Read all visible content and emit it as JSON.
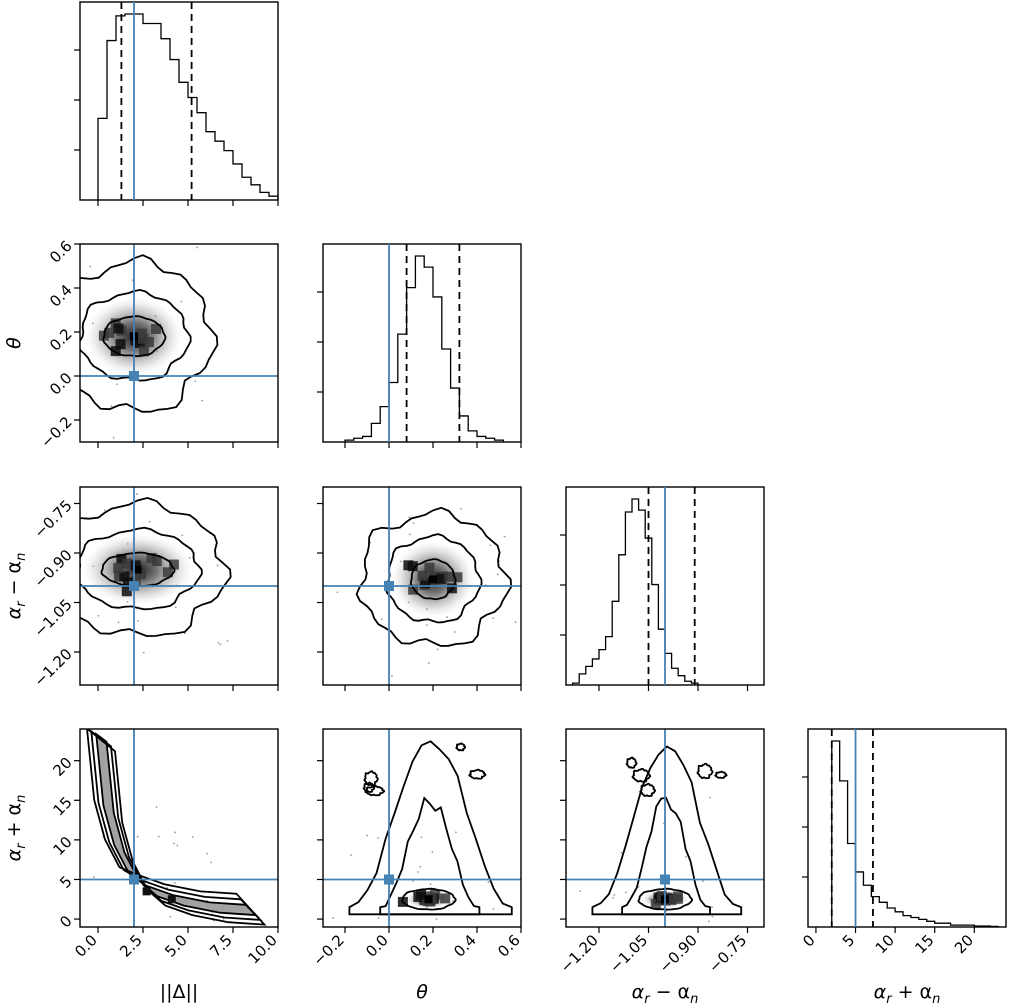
{
  "chart_data": {
    "type": "corner",
    "colors": {
      "truth": "#4682b4",
      "contour": "#000000",
      "hist": "#000000"
    },
    "quantile_line_style": "dashed",
    "parameters": [
      {
        "key": "delta",
        "label": "||Δ||",
        "range": [
          -1.0,
          10.0
        ],
        "truth": 2.0,
        "quantiles": [
          1.3,
          2.0,
          5.2
        ],
        "ticks": [
          0.0,
          2.5,
          5.0,
          7.5,
          10.0
        ],
        "tick_labels": [
          "0.0",
          "2.5",
          "5.0",
          "7.5",
          "10.0"
        ],
        "hist": {
          "start": 0.0,
          "step": 0.5,
          "counts": [
            0.43,
            0.84,
            0.97,
            0.98,
            0.98,
            0.93,
            0.93,
            0.85,
            0.74,
            0.62,
            0.54,
            0.46,
            0.36,
            0.31,
            0.26,
            0.19,
            0.12,
            0.08,
            0.04,
            0.02
          ]
        }
      },
      {
        "key": "theta",
        "label": "θ",
        "range": [
          -0.3,
          0.6
        ],
        "truth": 0.0,
        "quantiles": [
          0.08,
          0.2,
          0.32
        ],
        "ticks": [
          -0.2,
          0.0,
          0.2,
          0.4,
          0.6
        ],
        "tick_labels": [
          "−0.2",
          "0.0",
          "0.2",
          "0.4",
          "0.6"
        ],
        "hist": {
          "start": -0.2,
          "step": 0.04,
          "counts": [
            0.01,
            0.02,
            0.03,
            0.1,
            0.19,
            0.32,
            0.58,
            0.83,
            1.0,
            0.94,
            0.78,
            0.5,
            0.29,
            0.14,
            0.06,
            0.03,
            0.02,
            0.01
          ]
        }
      },
      {
        "key": "adiff",
        "label": "αr − αn",
        "label_main": "α",
        "label_sub1": "r",
        "label_op": " − α",
        "label_sub2": "n",
        "range": [
          -1.3,
          -0.7
        ],
        "truth": -1.0,
        "quantiles": [
          -1.05,
          -1.0,
          -0.91
        ],
        "ticks": [
          -1.2,
          -1.05,
          -0.9,
          -0.75
        ],
        "tick_labels": [
          "−1.20",
          "−1.05",
          "−0.90",
          "−0.75"
        ],
        "hist": {
          "start": -1.28,
          "step": 0.02,
          "counts": [
            0.01,
            0.06,
            0.1,
            0.14,
            0.19,
            0.26,
            0.45,
            0.7,
            0.93,
            1.0,
            0.94,
            0.79,
            0.54,
            0.3,
            0.17,
            0.09,
            0.05,
            0.02,
            0.01
          ]
        }
      },
      {
        "key": "asum",
        "label": "αr + αn",
        "label_main": "α",
        "label_sub1": "r",
        "label_op": " + α",
        "label_sub2": "n",
        "range": [
          -1.0,
          24.0
        ],
        "truth": 5.0,
        "quantiles": [
          2.0,
          5.0,
          7.2
        ],
        "ticks": [
          0,
          5,
          10,
          15,
          20
        ],
        "tick_labels": [
          "0",
          "5",
          "10",
          "15",
          "20"
        ],
        "hist": {
          "start": 2.0,
          "step": 1.0,
          "counts": [
            0.98,
            0.77,
            0.44,
            0.29,
            0.22,
            0.16,
            0.13,
            0.1,
            0.08,
            0.06,
            0.05,
            0.04,
            0.03,
            0.02,
            0.02,
            0.01,
            0.01,
            0.01,
            0.005,
            0.005,
            0.003
          ]
        }
      }
    ],
    "panels_2d": [
      {
        "x": "delta",
        "y": "theta",
        "mode": {
          "x": 2.0,
          "y": 0.18
        },
        "contours": [
          {
            "rx": 1.7,
            "ry": 0.09
          },
          {
            "rx": 3.0,
            "ry": 0.2
          },
          {
            "rx": 4.3,
            "ry": 0.34
          }
        ]
      },
      {
        "x": "delta",
        "y": "adiff",
        "mode": {
          "x": 2.2,
          "y": -0.95
        },
        "contours": [
          {
            "rx": 2.0,
            "ry": 0.05
          },
          {
            "rx": 3.4,
            "ry": 0.12
          },
          {
            "rx": 4.8,
            "ry": 0.2
          }
        ]
      },
      {
        "x": "theta",
        "y": "adiff",
        "mode": {
          "x": 0.2,
          "y": -0.98
        },
        "contours": [
          {
            "rx": 0.1,
            "ry": 0.06
          },
          {
            "rx": 0.21,
            "ry": 0.13
          },
          {
            "rx": 0.33,
            "ry": 0.2
          }
        ]
      },
      {
        "x": "delta",
        "y": "asum",
        "mode": {
          "x": 3.0,
          "y": 3.5
        },
        "banana": true
      },
      {
        "x": "theta",
        "y": "asum",
        "mode": {
          "x": 0.18,
          "y": 2.5
        },
        "contours": [
          {
            "rx": 0.12,
            "ry": 1.3
          }
        ],
        "fan": [
          {
            "w": 0.22,
            "top": 15
          },
          {
            "w": 0.36,
            "top": 23
          }
        ]
      },
      {
        "x": "adiff",
        "y": "asum",
        "mode": {
          "x": -1.0,
          "y": 2.5
        },
        "contours": [
          {
            "rx": 0.08,
            "ry": 1.3
          }
        ],
        "fan": [
          {
            "w": 0.13,
            "top": 15
          },
          {
            "w": 0.22,
            "top": 22
          }
        ]
      }
    ]
  },
  "labels": {
    "xlabels": [
      "||Δ||",
      "θ",
      "α",
      "α"
    ],
    "ylabels": [
      "θ",
      "α",
      "α"
    ]
  }
}
